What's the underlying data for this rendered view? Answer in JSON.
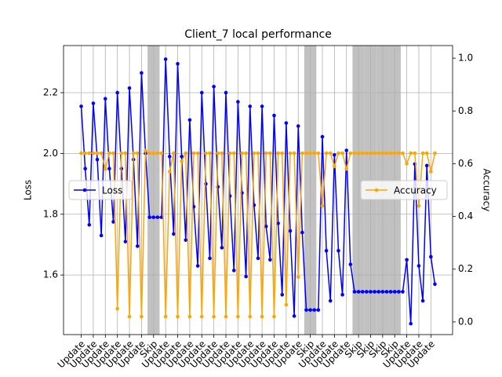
{
  "chart_data": {
    "type": "line",
    "title": "Client_7 local performance",
    "ylabel": "Loss",
    "y2label": "Accuracy",
    "xlim": [
      -4.4,
      92.4
    ],
    "xticks": [
      {
        "value": 0,
        "label": "Update"
      },
      {
        "value": 3,
        "label": "Update"
      },
      {
        "value": 6,
        "label": "Update"
      },
      {
        "value": 9,
        "label": "Update"
      },
      {
        "value": 12,
        "label": "Update"
      },
      {
        "value": 15,
        "label": "Update"
      },
      {
        "value": 18,
        "label": "Skip"
      },
      {
        "value": 21,
        "label": "Update"
      },
      {
        "value": 24,
        "label": "Update"
      },
      {
        "value": 27,
        "label": "Update"
      },
      {
        "value": 30,
        "label": "Update"
      },
      {
        "value": 33,
        "label": "Update"
      },
      {
        "value": 36,
        "label": "Update"
      },
      {
        "value": 39,
        "label": "Update"
      },
      {
        "value": 42,
        "label": "Update"
      },
      {
        "value": 45,
        "label": "Update"
      },
      {
        "value": 48,
        "label": "Update"
      },
      {
        "value": 51,
        "label": "Update"
      },
      {
        "value": 54,
        "label": "Update"
      },
      {
        "value": 57,
        "label": "Skip"
      },
      {
        "value": 60,
        "label": "Update"
      },
      {
        "value": 63,
        "label": "Update"
      },
      {
        "value": 66,
        "label": "Update"
      },
      {
        "value": 69,
        "label": "Skip"
      },
      {
        "value": 72,
        "label": "Skip"
      },
      {
        "value": 75,
        "label": "Skip"
      },
      {
        "value": 78,
        "label": "Skip"
      },
      {
        "value": 81,
        "label": "Update"
      },
      {
        "value": 84,
        "label": "Update"
      },
      {
        "value": 87,
        "label": "Update"
      }
    ],
    "ylim": [
      1.404,
      2.355
    ],
    "yticks": [
      1.6,
      1.8,
      {
        "value": 2.0,
        "label": "2.0"
      },
      2.2
    ],
    "y2lim": [
      -0.048,
      1.048
    ],
    "y2ticks": [
      {
        "value": 0.0,
        "label": "0.0"
      },
      0.2,
      0.4,
      0.6,
      0.8,
      {
        "value": 1.0,
        "label": "1.0"
      }
    ],
    "grid": true,
    "shade_label": "Skip",
    "shade_color": "#bebebe",
    "series": [
      {
        "name": "Loss",
        "color": "#0000ff",
        "legend_loc": "center left",
        "values": [
          2.155,
          1.95,
          1.765,
          2.165,
          1.98,
          1.73,
          2.18,
          1.95,
          1.775,
          2.2,
          1.95,
          1.71,
          2.215,
          1.98,
          1.695,
          2.265,
          2.0,
          1.79,
          1.79,
          1.79,
          1.79,
          2.31,
          1.99,
          1.735,
          2.295,
          1.99,
          1.715,
          2.11,
          1.825,
          1.63,
          2.2,
          1.9,
          1.655,
          2.22,
          1.89,
          1.69,
          2.2,
          1.86,
          1.615,
          2.17,
          1.87,
          1.595,
          2.155,
          1.83,
          1.655,
          2.155,
          1.76,
          1.65,
          2.125,
          1.77,
          1.535,
          2.1,
          1.745,
          1.465,
          2.09,
          1.74,
          1.485,
          1.485,
          1.485,
          1.485,
          2.055,
          1.68,
          1.515,
          1.995,
          1.68,
          1.535,
          2.01,
          1.635,
          1.545,
          1.545,
          1.545,
          1.545,
          1.545,
          1.545,
          1.545,
          1.545,
          1.545,
          1.545,
          1.545,
          1.545,
          1.545,
          1.65,
          1.44,
          1.965,
          1.63,
          1.515,
          1.96,
          1.66,
          1.57
        ]
      },
      {
        "name": "Accuracy",
        "color": "#ffa500",
        "axis": "y2",
        "legend_loc": "center right",
        "values": [
          0.64,
          0.64,
          0.64,
          0.64,
          0.64,
          0.64,
          0.58,
          0.64,
          0.64,
          0.05,
          0.64,
          0.64,
          0.02,
          0.64,
          0.64,
          0.02,
          0.65,
          0.64,
          0.64,
          0.64,
          0.64,
          0.02,
          0.57,
          0.64,
          0.02,
          0.61,
          0.64,
          0.02,
          0.64,
          0.64,
          0.02,
          0.64,
          0.64,
          0.02,
          0.64,
          0.64,
          0.02,
          0.64,
          0.64,
          0.02,
          0.64,
          0.64,
          0.02,
          0.64,
          0.64,
          0.02,
          0.64,
          0.64,
          0.02,
          0.64,
          0.64,
          0.065,
          0.64,
          0.64,
          0.17,
          0.64,
          0.64,
          0.64,
          0.64,
          0.64,
          0.44,
          0.64,
          0.64,
          0.59,
          0.64,
          0.64,
          0.58,
          0.64,
          0.64,
          0.64,
          0.64,
          0.64,
          0.64,
          0.64,
          0.64,
          0.64,
          0.64,
          0.64,
          0.64,
          0.64,
          0.64,
          0.6,
          0.64,
          0.64,
          0.44,
          0.64,
          0.64,
          0.57,
          0.64
        ]
      }
    ]
  }
}
